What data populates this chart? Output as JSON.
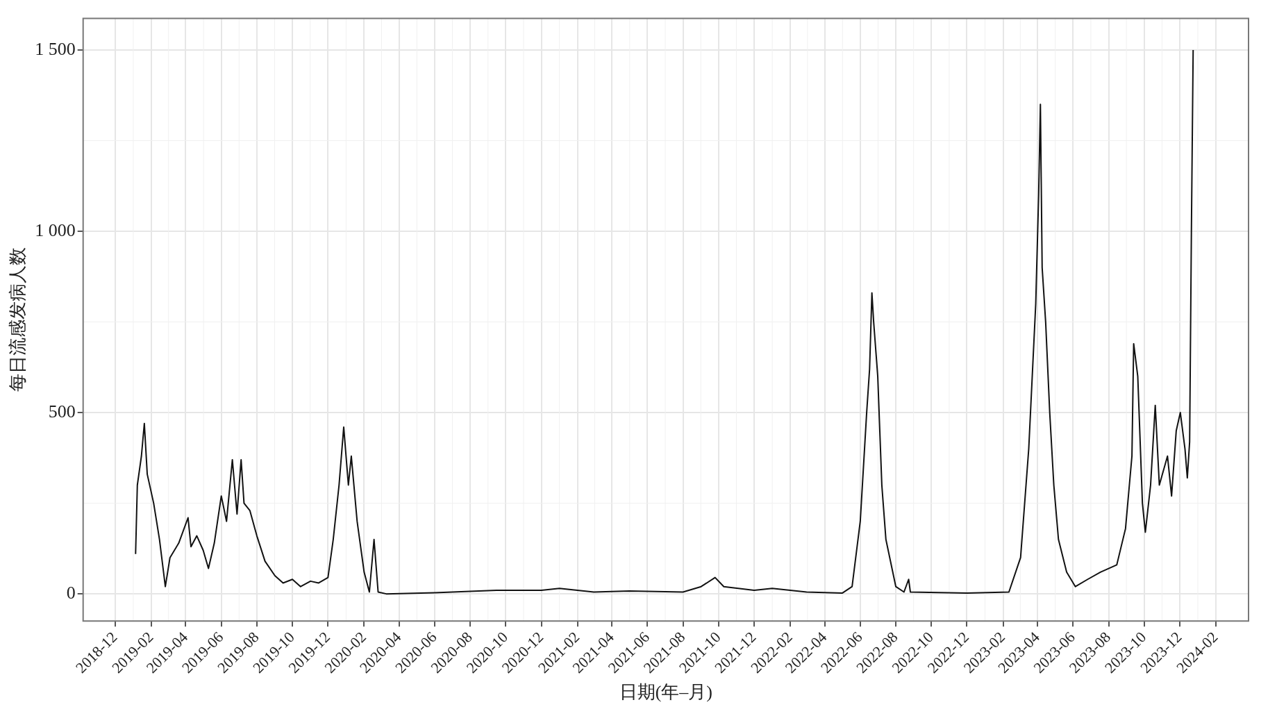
{
  "chart_data": {
    "type": "line",
    "xlabel": "日期(年–月)",
    "ylabel": "每日流感发病人数",
    "xlim": [
      "2018-10-07",
      "2024-03-28"
    ],
    "xticks": [
      "2018-12",
      "2019-02",
      "2019-04",
      "2019-06",
      "2019-08",
      "2019-10",
      "2019-12",
      "2020-02",
      "2020-04",
      "2020-06",
      "2020-08",
      "2020-10",
      "2020-12",
      "2021-02",
      "2021-04",
      "2021-06",
      "2021-08",
      "2021-10",
      "2021-12",
      "2022-02",
      "2022-04",
      "2022-06",
      "2022-08",
      "2022-10",
      "2022-12",
      "2023-02",
      "2023-04",
      "2023-06",
      "2023-08",
      "2023-10",
      "2023-12",
      "2024-02"
    ],
    "ylim": [
      -75,
      1587
    ],
    "yticks": [
      0,
      500,
      {
        "value": 1000,
        "label": "1 000"
      },
      {
        "value": 1500,
        "label": "1 500"
      }
    ],
    "grid": true,
    "legend": false,
    "marker": "none",
    "line_style": "solid",
    "x": [
      "2019-01-05",
      "2019-01-08",
      "2019-01-15",
      "2019-01-20",
      "2019-01-25",
      "2019-02-05",
      "2019-02-15",
      "2019-02-25",
      "2019-03-05",
      "2019-03-20",
      "2019-04-05",
      "2019-04-10",
      "2019-04-20",
      "2019-05-01",
      "2019-05-10",
      "2019-05-20",
      "2019-06-01",
      "2019-06-10",
      "2019-06-20",
      "2019-06-28",
      "2019-07-05",
      "2019-07-10",
      "2019-07-20",
      "2019-08-01",
      "2019-08-15",
      "2019-09-01",
      "2019-09-15",
      "2019-10-01",
      "2019-10-15",
      "2019-11-01",
      "2019-11-15",
      "2019-12-01",
      "2019-12-10",
      "2019-12-20",
      "2019-12-28",
      "2020-01-05",
      "2020-01-10",
      "2020-01-20",
      "2020-02-01",
      "2020-02-10",
      "2020-02-18",
      "2020-02-25",
      "2020-03-10",
      "2020-06-01",
      "2020-09-15",
      "2020-12-01",
      "2021-01-01",
      "2021-03-01",
      "2021-05-01",
      "2021-08-01",
      "2021-09-01",
      "2021-09-25",
      "2021-10-10",
      "2021-12-01",
      "2022-01-01",
      "2022-03-01",
      "2022-05-01",
      "2022-05-18",
      "2022-06-01",
      "2022-06-12",
      "2022-06-17",
      "2022-06-21",
      "2022-06-24",
      "2022-07-01",
      "2022-07-08",
      "2022-07-15",
      "2022-08-01",
      "2022-08-15",
      "2022-08-23",
      "2022-08-26",
      "2022-12-01",
      "2023-02-11",
      "2023-03-03",
      "2023-03-17",
      "2023-03-29",
      "2023-04-03",
      "2023-04-06",
      "2023-04-09",
      "2023-04-15",
      "2023-04-22",
      "2023-04-29",
      "2023-05-07",
      "2023-05-21",
      "2023-06-05",
      "2023-06-26",
      "2023-07-18",
      "2023-08-15",
      "2023-08-30",
      "2023-09-10",
      "2023-09-13",
      "2023-09-20",
      "2023-09-28",
      "2023-10-03",
      "2023-10-12",
      "2023-10-20",
      "2023-10-27",
      "2023-11-10",
      "2023-11-17",
      "2023-11-25",
      "2023-12-02",
      "2023-12-10",
      "2023-12-14",
      "2023-12-18",
      "2023-12-21",
      "2023-12-24"
    ],
    "series": [
      {
        "color": "#111111",
        "values": [
          110,
          300,
          380,
          470,
          330,
          250,
          150,
          20,
          100,
          140,
          210,
          130,
          160,
          120,
          70,
          140,
          270,
          200,
          370,
          220,
          370,
          250,
          230,
          160,
          90,
          50,
          30,
          40,
          20,
          35,
          30,
          45,
          150,
          300,
          460,
          300,
          380,
          200,
          60,
          5,
          150,
          5,
          0,
          3,
          10,
          10,
          15,
          5,
          8,
          5,
          20,
          45,
          20,
          10,
          15,
          5,
          2,
          20,
          200,
          500,
          620,
          830,
          750,
          600,
          300,
          150,
          20,
          5,
          40,
          5,
          2,
          5,
          100,
          400,
          800,
          1100,
          1350,
          900,
          750,
          500,
          300,
          150,
          60,
          20,
          40,
          60,
          80,
          180,
          380,
          690,
          600,
          250,
          170,
          300,
          520,
          300,
          380,
          270,
          450,
          500,
          400,
          320,
          420,
          1000,
          1500
        ]
      }
    ]
  }
}
